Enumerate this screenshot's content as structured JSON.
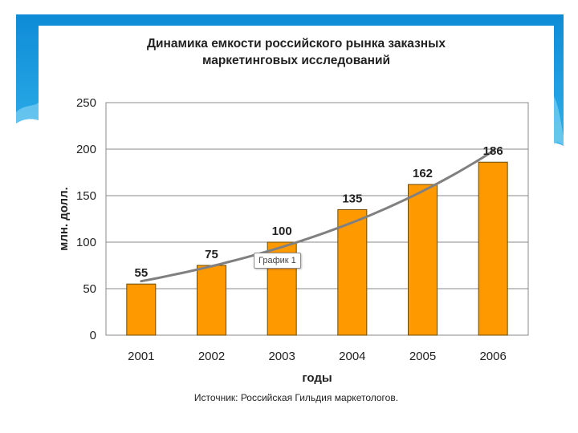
{
  "chart_data": {
    "type": "bar",
    "title_lines": [
      "Динамика емкости российского рынка заказных",
      "маркетинговых исследований"
    ],
    "xlabel": "годы",
    "ylabel": "млн. долл.",
    "categories": [
      "2001",
      "2002",
      "2003",
      "2004",
      "2005",
      "2006"
    ],
    "series": [
      {
        "values": [
          55,
          75,
          100,
          135,
          162,
          186
        ]
      }
    ],
    "data_labels": [
      "55",
      "75",
      "100",
      "135",
      "162",
      "186"
    ],
    "yticks": [
      0,
      50,
      100,
      150,
      200,
      250
    ],
    "ylim": [
      0,
      250
    ],
    "grid": true,
    "trendline": {
      "from": 58,
      "to": 198
    },
    "bar_color": "#FF9900",
    "trend_color": "#808080"
  },
  "tooltip": "График 1",
  "source": "Источник: Российская Гильдия маркетологов.",
  "colors": {
    "accent": "#1E90D8"
  }
}
